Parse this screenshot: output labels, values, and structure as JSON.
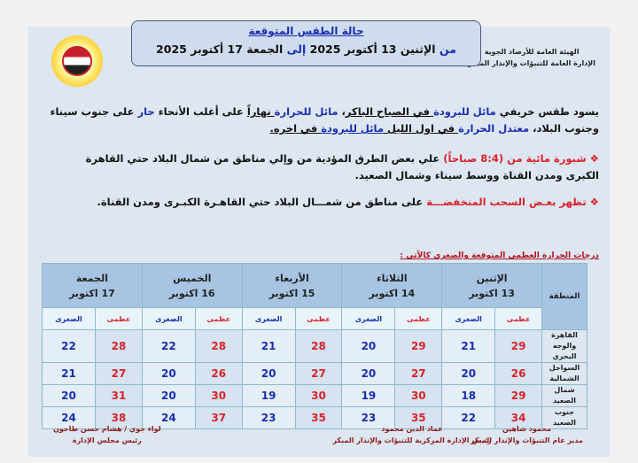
{
  "org": {
    "line1": "الهيئة العامة للأرصاد الجوية",
    "line2": "الإدارة العامة للتنبؤات والإنذار المبكر"
  },
  "title": "حالة الطقس المتوقعة",
  "subtitle": {
    "p1": "من",
    "p2": "الإثنين 13 أكتوبر 2025",
    "p3": "إلى",
    "p4": "الجمعة 17 أكتوبر 2025"
  },
  "paragraph": {
    "s1": "يسود طقس خريفي ",
    "s2": "مائل للبرودة",
    "s3": " في الصباح الباكر",
    "s4": "، ",
    "s5": "مائل للحرارة",
    "s6": " نهاراً",
    "s7": " على أغلب الأنحاء ",
    "s8": "حار",
    "s9": " على جنوب سيناء وجنوب البلاد، ",
    "s10": "معتدل الحرارة",
    "s11": " في اول الليل ",
    "s12": "مائل للبرودة",
    "s13": " في اخره."
  },
  "bullets": [
    {
      "red": "شبورة مائية من (8:4 صباحاً)",
      "text": " علي بعض الطرق المؤدية من وإلي مناطق من شمال البلاد حتي القاهرة الكبرى ومدن القناة ووسط سيناء وشمال الصعيد."
    },
    {
      "red": "تظهر بعـض السحب المنخفضـــة",
      "text": " على مناطق من شمـــال البلاد حتي القاهـرة الكبـرى ومدن القناة."
    }
  ],
  "table_caption": "درجات الحرارة العظمى المتوقعة والصغرى كالآتى :",
  "table": {
    "region_header": "المنطقة",
    "max_label": "عظمى",
    "min_label": "الصغرى",
    "days": [
      {
        "name": "الإثنين",
        "date": "13 اكتوبر"
      },
      {
        "name": "الثلاثاء",
        "date": "14 اكتوبر"
      },
      {
        "name": "الأربعاء",
        "date": "15 اكتوبر"
      },
      {
        "name": "الخميس",
        "date": "16 اكتوبر"
      },
      {
        "name": "الجمعة",
        "date": "17 اكتوبر"
      }
    ],
    "rows": [
      {
        "region": "القاهرة والوجه البحري",
        "vals": [
          [
            29,
            21
          ],
          [
            29,
            20
          ],
          [
            28,
            21
          ],
          [
            28,
            22
          ],
          [
            28,
            22
          ]
        ]
      },
      {
        "region": "السواحل الشمالية",
        "vals": [
          [
            26,
            20
          ],
          [
            27,
            20
          ],
          [
            27,
            20
          ],
          [
            26,
            20
          ],
          [
            27,
            21
          ]
        ]
      },
      {
        "region": "شمال الصعيد",
        "vals": [
          [
            29,
            18
          ],
          [
            30,
            19
          ],
          [
            30,
            19
          ],
          [
            30,
            20
          ],
          [
            31,
            20
          ]
        ]
      },
      {
        "region": "جنوب الصعيد",
        "vals": [
          [
            34,
            22
          ],
          [
            35,
            23
          ],
          [
            35,
            23
          ],
          [
            37,
            24
          ],
          [
            38,
            24
          ]
        ]
      }
    ]
  },
  "signatures": [
    {
      "name": "محمود شاهين",
      "role": "مدير عام التنبؤات والإنذار المبكر"
    },
    {
      "name": "عماد الدين محمود",
      "role": "رئيس الإدارة المركزية للتنبؤات والإنذار المبكر"
    },
    {
      "name": "لواء جوي / هشام حسن طاحون",
      "role": "رئيس مجلس الإدارة"
    }
  ],
  "colors": {
    "max": "#d8232a",
    "min": "#1a2fb0",
    "header": "#a7c5e3"
  }
}
